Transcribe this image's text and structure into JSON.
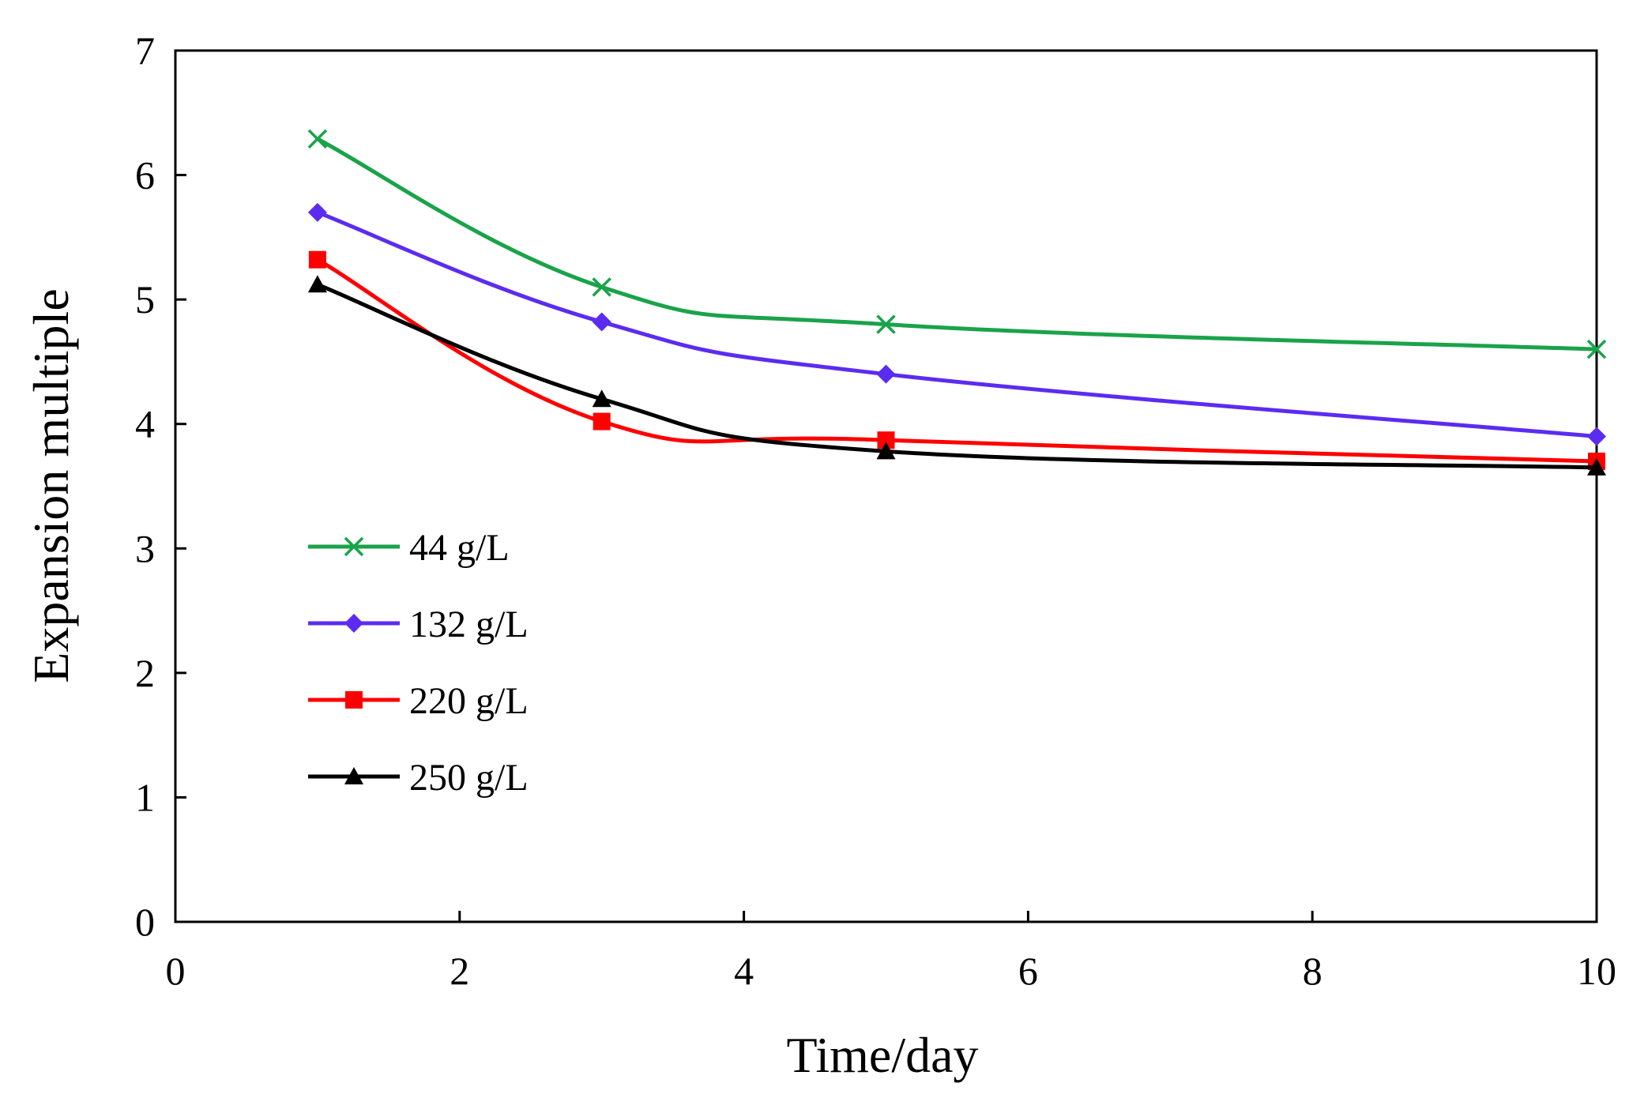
{
  "chart_data": {
    "type": "line",
    "title": "",
    "xlabel": "Time/day",
    "ylabel": "Expansion multiple",
    "xlim": [
      0,
      10
    ],
    "ylim": [
      0,
      7
    ],
    "xticks": [
      "0",
      "2",
      "4",
      "6",
      "8",
      "10"
    ],
    "yticks": [
      "0",
      "1",
      "2",
      "3",
      "4",
      "5",
      "6",
      "7"
    ],
    "grid": false,
    "legend_position": "middle-left",
    "x": [
      1,
      3,
      5,
      10
    ],
    "series": [
      {
        "name": "44 g/L",
        "color": "#1aa34a",
        "marker": "x",
        "values": [
          6.29,
          5.1,
          4.8,
          4.6
        ]
      },
      {
        "name": "132 g/L",
        "color": "#5b2cf0",
        "marker": "diamond",
        "values": [
          5.7,
          4.82,
          4.4,
          3.9
        ]
      },
      {
        "name": "220 g/L",
        "color": "#ff0000",
        "marker": "square",
        "values": [
          5.32,
          4.02,
          3.87,
          3.7
        ]
      },
      {
        "name": "250 g/L",
        "color": "#000000",
        "marker": "triangle",
        "values": [
          5.12,
          4.2,
          3.78,
          3.65
        ]
      }
    ]
  }
}
